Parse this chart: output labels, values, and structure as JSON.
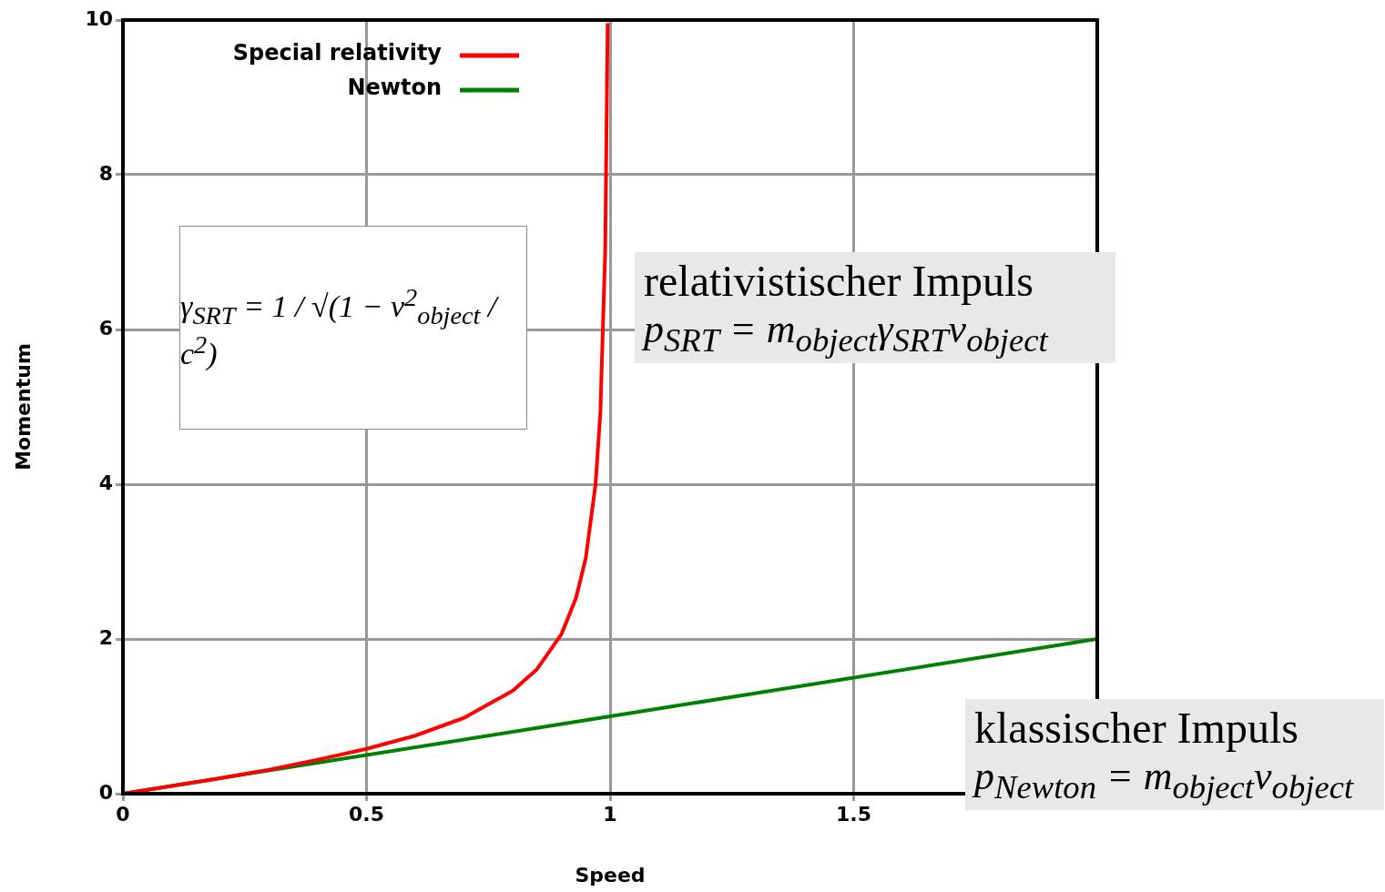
{
  "chart_data": {
    "type": "line",
    "xlabel": "Speed",
    "ylabel": "Momentum",
    "xlim": [
      0,
      2
    ],
    "xticks": [
      0,
      0.5,
      1,
      1.5,
      {
        "value": 2,
        "label": null
      }
    ],
    "ylim": [
      0,
      10
    ],
    "yticks": [
      0,
      2,
      4,
      6,
      8,
      10
    ],
    "grid": true,
    "legend": "top left",
    "marker": "none",
    "line_style": "solid",
    "series": [
      {
        "name": "Special relativity",
        "color": "#ff0000",
        "x": [
          0,
          0.1,
          0.2,
          0.3,
          0.4,
          0.5,
          0.6,
          0.7,
          0.8,
          0.85,
          0.9,
          0.93,
          0.95,
          0.97,
          0.98,
          0.99,
          0.995
        ],
        "values": [
          0,
          0.1,
          0.2,
          0.31,
          0.44,
          0.58,
          0.75,
          0.98,
          1.33,
          1.61,
          2.06,
          2.53,
          3.04,
          3.99,
          4.92,
          7.02,
          9.96
        ]
      },
      {
        "name": "Newton",
        "color": "#008000",
        "x": [
          0,
          1,
          2
        ],
        "values": [
          0,
          1,
          2
        ]
      }
    ],
    "annotations": [
      "γ$_{SRT}$ = 1 / √(1 − v$^{2}$$_{object}$ / c$^{2}$)",
      "relativistischer Impuls",
      "p$_{SRT}$ = m$_{object}$γ$_{SRT}$v$_{object}$",
      "klassischer Impuls",
      "p$_{Newton}$ = m$_{object}$v$_{object}$"
    ]
  }
}
